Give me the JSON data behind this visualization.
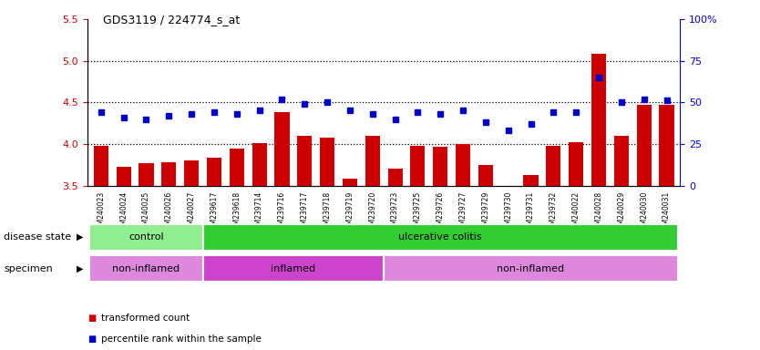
{
  "title": "GDS3119 / 224774_s_at",
  "samples": [
    "GSM240023",
    "GSM240024",
    "GSM240025",
    "GSM240026",
    "GSM240027",
    "GSM239617",
    "GSM239618",
    "GSM239714",
    "GSM239716",
    "GSM239717",
    "GSM239718",
    "GSM239719",
    "GSM239720",
    "GSM239723",
    "GSM239725",
    "GSM239726",
    "GSM239727",
    "GSM239729",
    "GSM239730",
    "GSM239731",
    "GSM239732",
    "GSM240022",
    "GSM240028",
    "GSM240029",
    "GSM240030",
    "GSM240031"
  ],
  "bar_values": [
    3.98,
    3.72,
    3.77,
    3.78,
    3.8,
    3.84,
    3.94,
    4.01,
    4.38,
    4.1,
    4.08,
    3.58,
    4.1,
    3.7,
    3.98,
    3.97,
    4.0,
    3.75,
    3.49,
    3.63,
    3.98,
    4.02,
    5.08,
    4.1,
    4.47,
    4.47
  ],
  "dot_values": [
    44,
    41,
    40,
    42,
    43,
    44,
    43,
    45,
    52,
    49,
    50,
    45,
    43,
    40,
    44,
    43,
    45,
    38,
    33,
    37,
    44,
    44,
    65,
    50,
    52,
    51
  ],
  "ylim_left": [
    3.5,
    5.5
  ],
  "ylim_right": [
    0,
    100
  ],
  "yticks_left": [
    3.5,
    4.0,
    4.5,
    5.0,
    5.5
  ],
  "yticks_right": [
    0,
    25,
    50,
    75,
    100
  ],
  "bar_color": "#cc0000",
  "dot_color": "#0000cc",
  "dotted_line_values": [
    4.0,
    4.5,
    5.0
  ],
  "disease_state_groups": [
    {
      "label": "control",
      "start": 0,
      "end": 5,
      "color": "#90ee90"
    },
    {
      "label": "ulcerative colitis",
      "start": 5,
      "end": 26,
      "color": "#33cc33"
    }
  ],
  "specimen_groups": [
    {
      "label": "non-inflamed",
      "start": 0,
      "end": 5,
      "color": "#dd88dd"
    },
    {
      "label": "inflamed",
      "start": 5,
      "end": 13,
      "color": "#cc44cc"
    },
    {
      "label": "non-inflamed",
      "start": 13,
      "end": 26,
      "color": "#dd88dd"
    }
  ],
  "legend_items": [
    {
      "label": "transformed count",
      "color": "#cc0000"
    },
    {
      "label": "percentile rank within the sample",
      "color": "#0000cc"
    }
  ],
  "left_label_disease": "disease state",
  "left_label_specimen": "specimen"
}
